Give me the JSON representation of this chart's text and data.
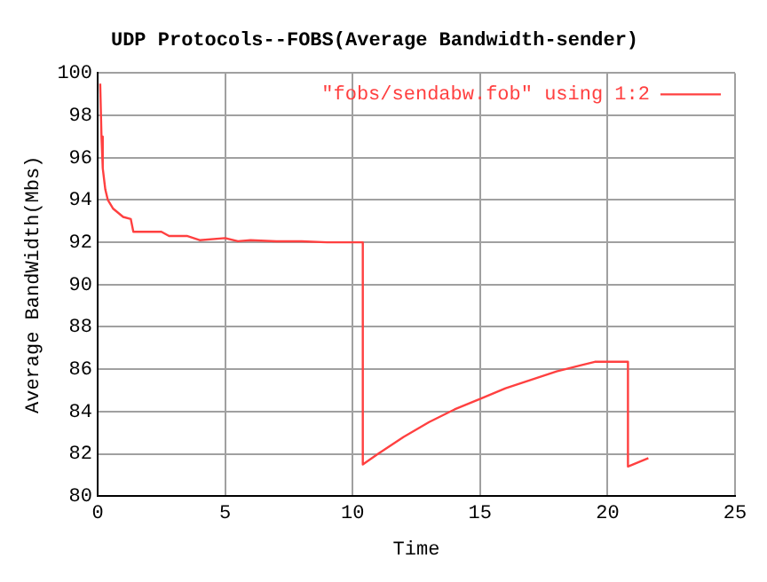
{
  "chart_data": {
    "type": "line",
    "title": "UDP Protocols--FOBS(Average Bandwidth-sender)",
    "xlabel": "Time",
    "ylabel": "Average BandWidth(Mbs)",
    "xlim": [
      0,
      25
    ],
    "xticks": [
      0,
      5,
      10,
      15,
      20,
      25
    ],
    "ylim": [
      80,
      100
    ],
    "yticks": [
      80,
      82,
      84,
      86,
      88,
      90,
      92,
      94,
      96,
      98,
      100
    ],
    "grid": true,
    "legend": "top right",
    "marker": "none",
    "line_style": "solid",
    "series": [
      {
        "name": "\"fobs/sendabw.fob\" using 1:2",
        "color": "#ff4040",
        "x": [
          0.1,
          0.15,
          0.2,
          0.3,
          0.4,
          0.6,
          1,
          1.3,
          1.4,
          2.5,
          2.8,
          3.5,
          4,
          5,
          5.5,
          6,
          7,
          8,
          9,
          10.4,
          10.4,
          11,
          12,
          13,
          14,
          15,
          16,
          17,
          18,
          19,
          19.5,
          20.8,
          20.8,
          21.2,
          21.6
        ],
        "values": [
          99.5,
          97,
          95.5,
          94.5,
          94,
          93.6,
          93.2,
          93.1,
          92.5,
          92.5,
          92.3,
          92.3,
          92.1,
          92.2,
          92.05,
          92.1,
          92.05,
          92.05,
          92,
          92,
          81.5,
          82,
          82.8,
          83.5,
          84.1,
          84.6,
          85.1,
          85.5,
          85.9,
          86.2,
          86.35,
          86.35,
          81.4,
          81.6,
          81.8
        ]
      }
    ]
  }
}
